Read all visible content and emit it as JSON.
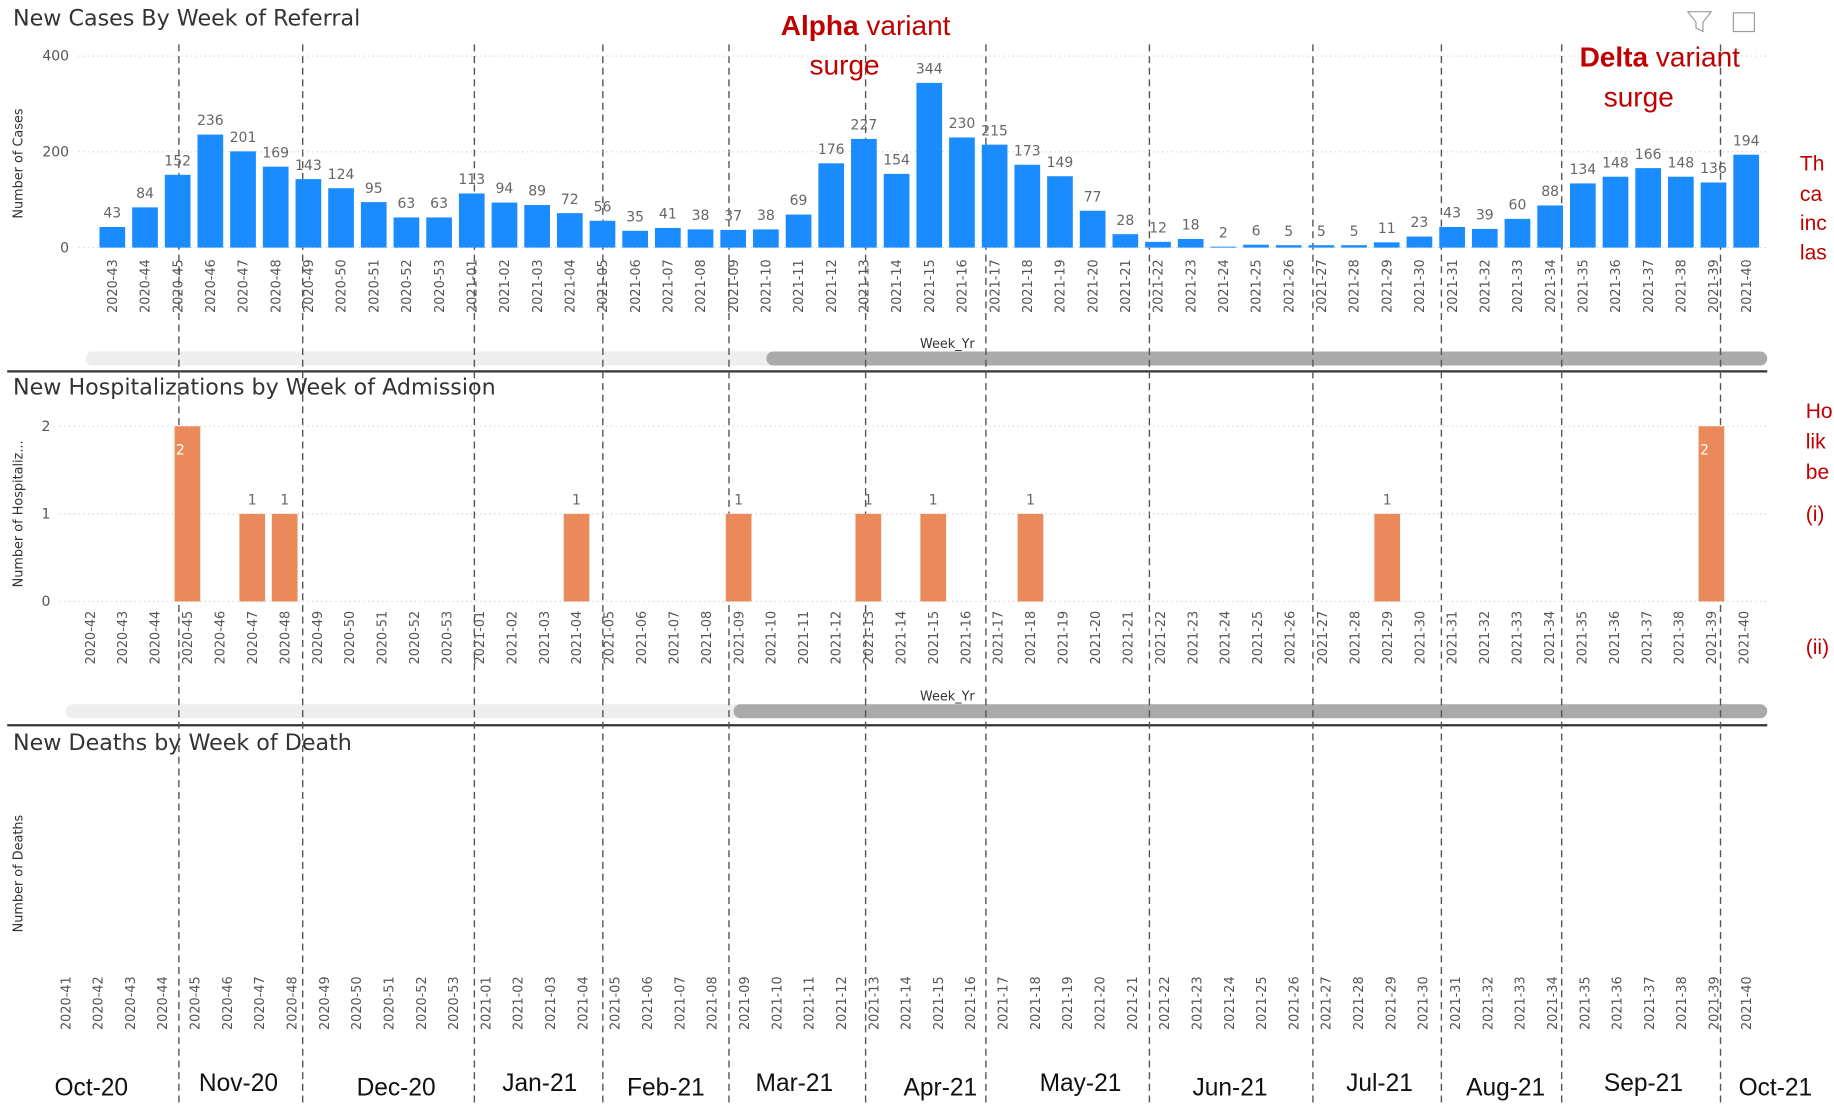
{
  "chart_data": [
    {
      "type": "bar",
      "title": "New Cases By Week of Referral",
      "x_label": "Week_Yr",
      "y_label": "Number of Cases",
      "color": "#1a8cff",
      "grid": true,
      "categories": [
        "2020-43",
        "2020-44",
        "2020-45",
        "2020-46",
        "2020-47",
        "2020-48",
        "2020-49",
        "2020-50",
        "2020-51",
        "2020-52",
        "2020-53",
        "2021-01",
        "2021-02",
        "2021-03",
        "2021-04",
        "2021-05",
        "2021-06",
        "2021-07",
        "2021-08",
        "2021-09",
        "2021-10",
        "2021-11",
        "2021-12",
        "2021-13",
        "2021-14",
        "2021-15",
        "2021-16",
        "2021-17",
        "2021-18",
        "2021-19",
        "2021-20",
        "2021-21",
        "2021-22",
        "2021-23",
        "2021-24",
        "2021-25",
        "2021-26",
        "2021-27",
        "2021-28",
        "2021-29",
        "2021-30",
        "2021-31",
        "2021-32",
        "2021-33",
        "2021-34",
        "2021-35",
        "2021-36",
        "2021-37",
        "2021-38",
        "2021-39",
        "2021-40"
      ],
      "values": [
        43,
        84,
        152,
        236,
        201,
        169,
        143,
        124,
        95,
        63,
        63,
        113,
        94,
        89,
        72,
        56,
        35,
        41,
        38,
        37,
        38,
        69,
        176,
        227,
        154,
        344,
        230,
        215,
        173,
        149,
        77,
        28,
        12,
        18,
        2,
        6,
        5,
        5,
        5,
        11,
        23,
        43,
        39,
        60,
        88,
        134,
        148,
        166,
        148,
        136,
        194
      ],
      "ylim": [
        0,
        400
      ],
      "yticks": [
        0,
        200,
        400
      ]
    },
    {
      "type": "bar",
      "title": "New Hospitalizations by Week of Admission",
      "x_label": "Week_Yr",
      "y_label": "Number of Hospitaliz...",
      "color": "#ea8a5b",
      "grid": true,
      "categories": [
        "2020-42",
        "2020-43",
        "2020-44",
        "2020-45",
        "2020-46",
        "2020-47",
        "2020-48",
        "2020-49",
        "2020-50",
        "2020-51",
        "2020-52",
        "2020-53",
        "2021-01",
        "2021-02",
        "2021-03",
        "2021-04",
        "2021-05",
        "2021-06",
        "2021-07",
        "2021-08",
        "2021-09",
        "2021-10",
        "2021-11",
        "2021-12",
        "2021-13",
        "2021-14",
        "2021-15",
        "2021-16",
        "2021-17",
        "2021-18",
        "2021-19",
        "2021-20",
        "2021-21",
        "2021-22",
        "2021-23",
        "2021-24",
        "2021-25",
        "2021-26",
        "2021-27",
        "2021-28",
        "2021-29",
        "2021-30",
        "2021-31",
        "2021-32",
        "2021-33",
        "2021-34",
        "2021-35",
        "2021-36",
        "2021-37",
        "2021-38",
        "2021-39",
        "2021-40"
      ],
      "values": [
        null,
        null,
        null,
        2,
        null,
        1,
        1,
        null,
        null,
        null,
        null,
        null,
        null,
        null,
        null,
        1,
        null,
        null,
        null,
        null,
        1,
        null,
        null,
        null,
        1,
        null,
        1,
        null,
        null,
        1,
        null,
        null,
        null,
        null,
        null,
        null,
        null,
        null,
        null,
        null,
        1,
        null,
        null,
        null,
        null,
        null,
        null,
        null,
        null,
        null,
        2,
        null
      ],
      "ylim": [
        0,
        2
      ],
      "yticks": [
        0,
        1,
        2
      ]
    },
    {
      "type": "bar",
      "title": "New Deaths by Week of Death",
      "y_label": "Number of Deaths",
      "categories": [
        "2020-41",
        "2020-42",
        "2020-43",
        "2020-44",
        "2020-45",
        "2020-46",
        "2020-47",
        "2020-48",
        "2020-49",
        "2020-50",
        "2020-51",
        "2020-52",
        "2020-53",
        "2021-01",
        "2021-02",
        "2021-03",
        "2021-04",
        "2021-05",
        "2021-06",
        "2021-07",
        "2021-08",
        "2021-09",
        "2021-10",
        "2021-11",
        "2021-12",
        "2021-13",
        "2021-14",
        "2021-15",
        "2021-16",
        "2021-17",
        "2021-18",
        "2021-19",
        "2021-20",
        "2021-21",
        "2021-22",
        "2021-23",
        "2021-24",
        "2021-25",
        "2021-26",
        "2021-27",
        "2021-28",
        "2021-29",
        "2021-30",
        "2021-31",
        "2021-32",
        "2021-33",
        "2021-34",
        "2021-35",
        "2021-36",
        "2021-37",
        "2021-38",
        "2021-39",
        "2021-40"
      ]
    }
  ],
  "months": [
    "Oct-20",
    "Nov-20",
    "Dec-20",
    "Jan-21",
    "Feb-21",
    "Mar-21",
    "Apr-21",
    "May-21",
    "Jun-21",
    "Jul-21",
    "Aug-21",
    "Sep-21",
    "Oct-21"
  ],
  "alpha_annotation": {
    "name": "Alpha",
    "rest": "variant",
    "line2": "surge"
  },
  "delta_annotation": {
    "name": "Delta",
    "rest": "variant",
    "line2": "surge"
  },
  "side_text_1": [
    "Th",
    "ca",
    "inc",
    "las"
  ],
  "side_text_2": [
    "Ho",
    "lik",
    "be",
    "(i)",
    "(ii)"
  ]
}
